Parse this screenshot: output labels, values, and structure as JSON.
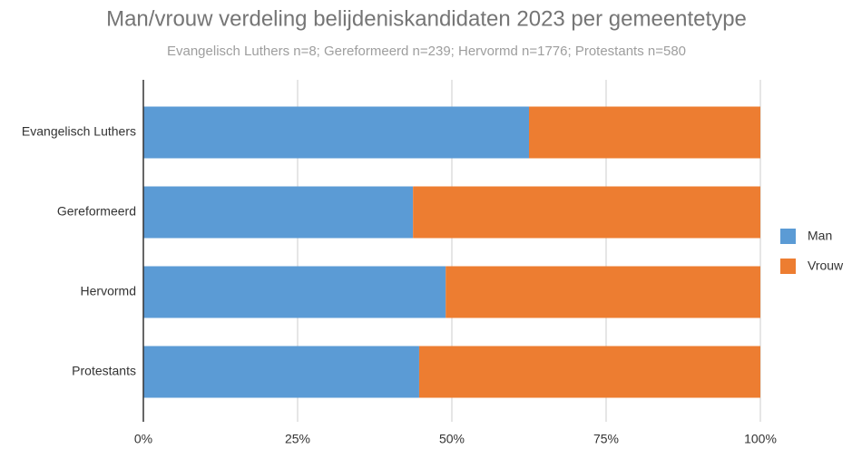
{
  "chart_data": {
    "type": "stacked_barh",
    "title": "Man/vrouw verdeling belijdeniskandidaten 2023 per gemeentetype",
    "subtitle": "Evangelisch Luthers n=8; Gereformeerd n=239; Hervormd n=1776; Protestants n=580",
    "categories": [
      "Evangelisch Luthers",
      "Gereformeerd",
      "Hervormd",
      "Protestants"
    ],
    "series": [
      {
        "name": "Man",
        "color": "#5b9bd5",
        "values": [
          62.5,
          43.7,
          49.0,
          44.7
        ]
      },
      {
        "name": "Vrouw",
        "color": "#ed7d31",
        "values": [
          37.5,
          56.3,
          51.0,
          55.3
        ]
      }
    ],
    "xlim": [
      0,
      100
    ],
    "xticks": [
      {
        "value": 0,
        "label": "0%"
      },
      {
        "value": 25,
        "label": "25%"
      },
      {
        "value": 50,
        "label": "50%"
      },
      {
        "value": 75,
        "label": "75%"
      },
      {
        "value": 100,
        "label": "100%"
      }
    ],
    "grid": true,
    "legend": "right"
  }
}
